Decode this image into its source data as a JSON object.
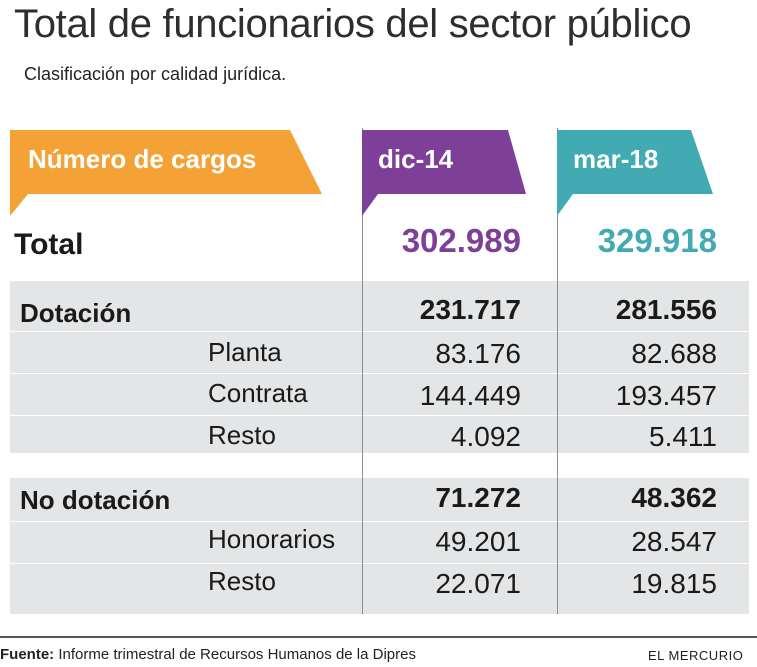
{
  "header": {
    "title": "Total de funcionarios del sector público",
    "subtitle": "Clasificación por calidad jurídica."
  },
  "chart_data": {
    "type": "table",
    "title": "Total de funcionarios del sector público",
    "subtitle": "Clasificación por calidad jurídica.",
    "row_header": "Número de cargos",
    "columns": [
      "dic-14",
      "mar-18"
    ],
    "column_colors": [
      "#7e3f98",
      "#41aab2"
    ],
    "total": {
      "label": "Total",
      "values": [
        "302.989",
        "329.918"
      ]
    },
    "groups": [
      {
        "label": "Dotación",
        "values": [
          "231.717",
          "281.556"
        ],
        "rows": [
          {
            "label": "Planta",
            "values": [
              "83.176",
              "82.688"
            ]
          },
          {
            "label": "Contrata",
            "values": [
              "144.449",
              "193.457"
            ]
          },
          {
            "label": "Resto",
            "values": [
              "4.092",
              "5.411"
            ]
          }
        ]
      },
      {
        "label": "No dotación",
        "values": [
          "71.272",
          "48.362"
        ],
        "rows": [
          {
            "label": "Honorarios",
            "values": [
              "49.201",
              "28.547"
            ]
          },
          {
            "label": "Resto",
            "values": [
              "22.071",
              "19.815"
            ]
          }
        ]
      }
    ]
  },
  "colors": {
    "header_orange": "#f4a236",
    "purple": "#7e3f98",
    "teal": "#41aab2",
    "stripe": "#e3e5e7"
  },
  "footer": {
    "source_label": "Fuente:",
    "source_text": "Informe trimestral de Recursos Humanos de la Dipres",
    "brand": "EL MERCURIO"
  }
}
